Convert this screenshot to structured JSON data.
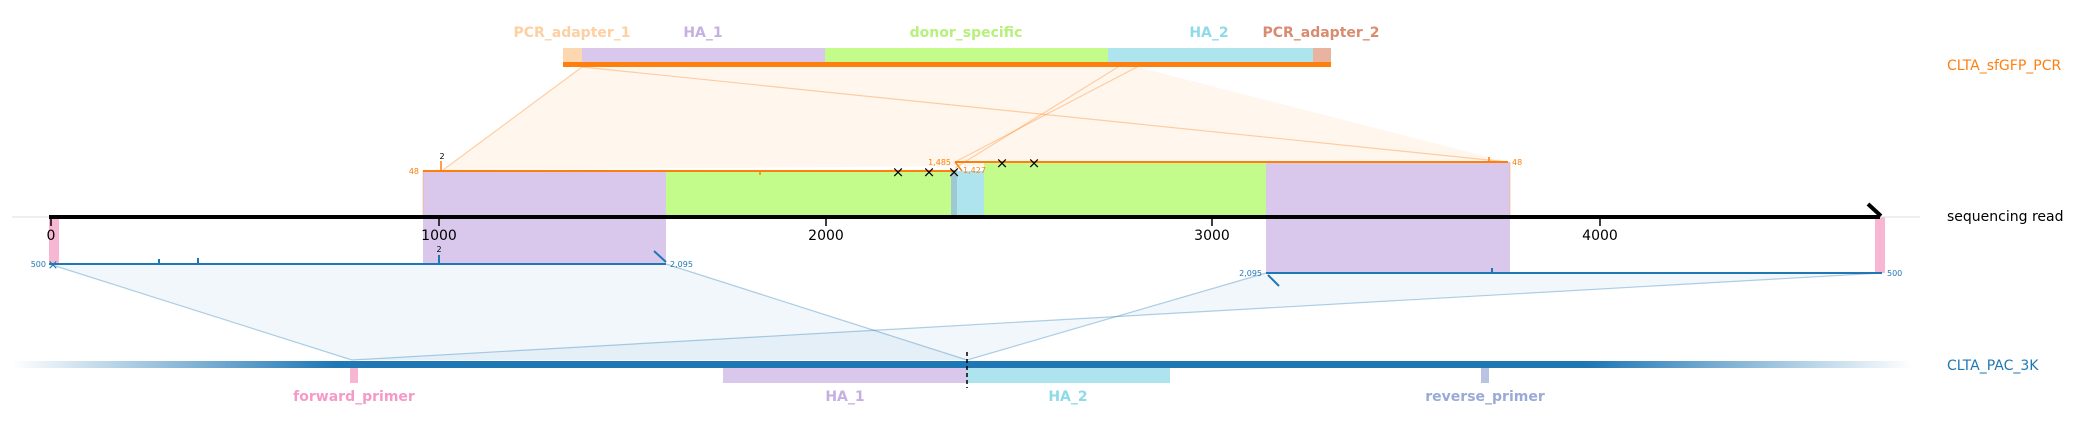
{
  "pcr_product": {
    "name": "CLTA_sfGFP_PCR",
    "name_color": "#ff7f0e",
    "features": [
      {
        "label": "PCR_adapter_1",
        "color": "#fdd0a2",
        "label_color": "#fdd0a2"
      },
      {
        "label": "HA_1",
        "color": "#d9c8ec",
        "label_color": "#c5b0e2"
      },
      {
        "label": "donor_specific",
        "color": "#c4fc8c",
        "label_color": "#b7f07c"
      },
      {
        "label": "HA_2",
        "color": "#aee4ee",
        "label_color": "#8fdae8"
      },
      {
        "label": "PCR_adapter_2",
        "color": "#e8b4a0",
        "label_color": "#d98b70"
      }
    ]
  },
  "read": {
    "name": "sequencing read",
    "axis_ticks": [
      "0",
      "1000",
      "2000",
      "3000",
      "4000"
    ],
    "upper_annotations": {
      "left_cov": "48",
      "right_cov": "48",
      "peak": "2",
      "left_pos": "1,485",
      "right_pos": "1,427"
    },
    "lower_annotations": {
      "left_cov": "500",
      "right_cov": "500",
      "peak": "2",
      "left_pos": "2,095",
      "right_pos": "2,095"
    },
    "mismatch_marker": "×"
  },
  "genome": {
    "name": "CLTA_PAC_3K",
    "name_color": "#1f77b4",
    "features": [
      {
        "label": "forward_primer",
        "color": "#f7b6d2",
        "label_color": "#f49ac9"
      },
      {
        "label": "HA_1",
        "color": "#d9c8ec",
        "label_color": "#c5b0e2"
      },
      {
        "label": "HA_2",
        "color": "#aee4ee",
        "label_color": "#8fdae8"
      },
      {
        "label": "reverse_primer",
        "color": "#b9c4e3",
        "label_color": "#9aaad6"
      }
    ]
  }
}
